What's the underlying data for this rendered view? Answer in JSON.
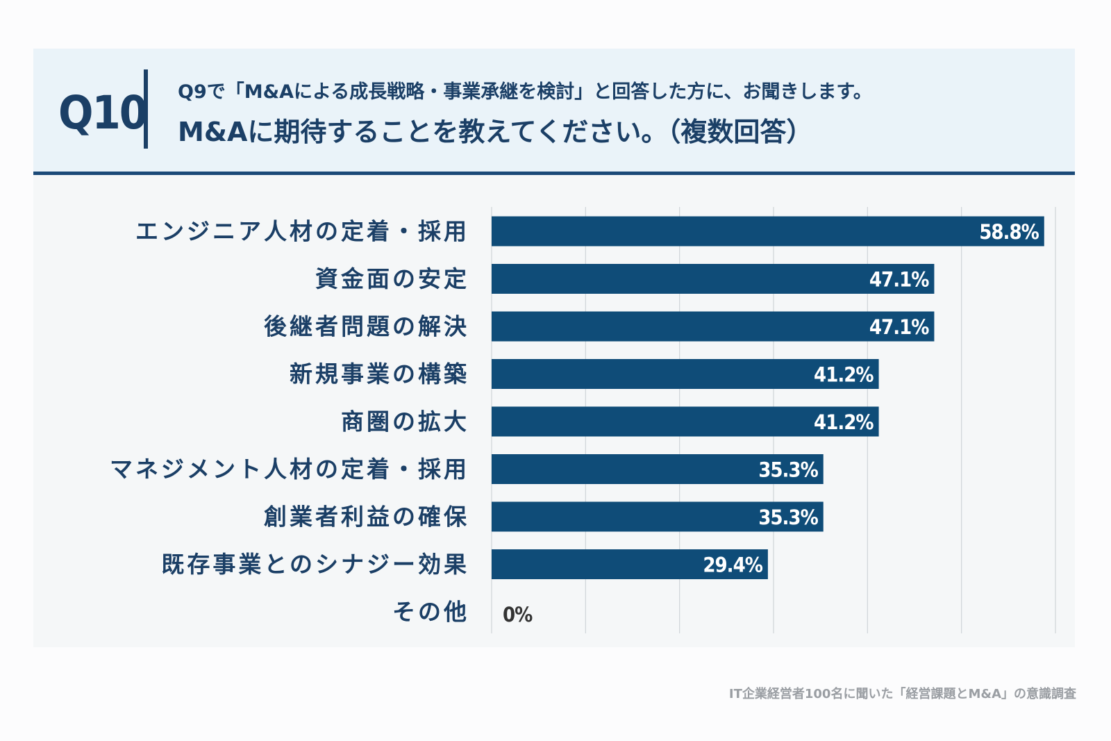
{
  "header": {
    "qnum": "Q10",
    "line1": "Q9で「M&Aによる成長戦略・事業承継を検討」と回答した方に、お聞きします。",
    "line2": "M&Aに期待することを教えてください。（複数回答）"
  },
  "footer": {
    "source": "IT企業経営者100名に聞いた「経営課題とM&A」の意識調査"
  },
  "colors": {
    "bar": "#0f4c78",
    "label_text": "#1b3f66",
    "grid": "#cfd4d8",
    "value_text_inside": "#ffffff",
    "value_text_outside": "#333333"
  },
  "chart_data": {
    "type": "bar",
    "orientation": "horizontal",
    "categories": [
      "エンジニア人材の定着・採用",
      "資金面の安定",
      "後継者問題の解決",
      "新規事業の構築",
      "商圏の拡大",
      "マネジメント人材の定着・採用",
      "創業者利益の確保",
      "既存事業とのシナジー効果",
      "その他"
    ],
    "values": [
      58.8,
      47.1,
      47.1,
      41.2,
      41.2,
      35.3,
      35.3,
      29.4,
      0
    ],
    "value_labels": [
      "58.8%",
      "47.1%",
      "47.1%",
      "41.2%",
      "41.2%",
      "35.3%",
      "35.3%",
      "29.4%",
      "0%"
    ],
    "xlim": [
      0,
      60
    ],
    "grid": true,
    "grid_step": 10,
    "title": "",
    "xlabel": "",
    "ylabel": ""
  }
}
